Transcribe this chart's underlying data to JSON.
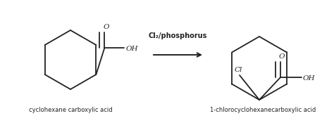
{
  "bg_color": "#ffffff",
  "text_color": "#222222",
  "arrow_label_top": "Cl₂/phosphorus",
  "label_left": "cyclohexane carboxylic acid",
  "label_right": "1-chlorocyclohexanecarboxylic acid",
  "figsize": [
    4.74,
    1.65
  ],
  "dpi": 100,
  "line_color": "#222222",
  "line_width": 1.3,
  "font_size_label": 6.0,
  "font_size_atom": 7.5,
  "font_size_arrow_label": 7.0
}
